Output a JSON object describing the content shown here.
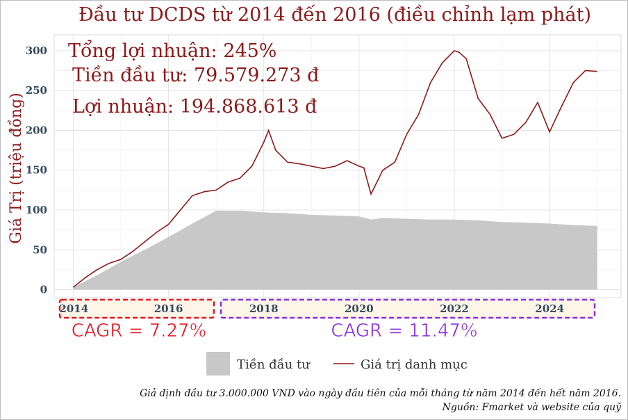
{
  "chart_data": {
    "type": "area",
    "title": "Đầu tư DCDS từ 2014 đến 2016 (điều chỉnh lạm phát)",
    "ylabel": "Giá Trị (triệu đồng)",
    "xlabel": "",
    "ylim": [
      -10,
      320
    ],
    "xlim": [
      2013.6,
      2025.5
    ],
    "yticks": [
      0,
      50,
      100,
      150,
      200,
      250,
      300
    ],
    "xticks": [
      2014,
      2016,
      2018,
      2020,
      2022,
      2024
    ],
    "grid": true,
    "legend_position": "bottom",
    "annotations": {
      "total_return": "Tổng lợi nhuận: 245%",
      "invested": "Tiền đầu tư: 79.579.273 đ",
      "profit": "Lợi nhuận: 194.868.613 đ",
      "cagr_first": "CAGR = 7.27%",
      "cagr_second": "CAGR = 11.47%"
    },
    "caption_line1": "Giả định đầu tư 3.000.000 VND vào ngày đầu tiên của mỗi tháng từ năm 2014 đến hết năm 2016.",
    "caption_line2": "Nguồn: Fmarket và website của quỹ",
    "colors": {
      "title": "#8b1a1a",
      "line": "#8b1a1a",
      "area": "#c8c8c8",
      "cagr_first": "#e8141e",
      "cagr_second": "#8a2be2",
      "tick": "#34495e",
      "box_fill": "#fdf5e8"
    },
    "series": [
      {
        "name": "Tiền đầu tư",
        "kind": "area",
        "x": [
          2014.0,
          2014.5,
          2015.0,
          2015.5,
          2016.0,
          2016.5,
          2017.0,
          2017.5,
          2018.0,
          2018.5,
          2019.0,
          2019.5,
          2020.0,
          2020.25,
          2020.5,
          2021.0,
          2021.5,
          2022.0,
          2022.5,
          2023.0,
          2023.5,
          2024.0,
          2024.5,
          2025.0
        ],
        "values": [
          3,
          18,
          35,
          50,
          66,
          83,
          99,
          99,
          97,
          96,
          94,
          93,
          92,
          88,
          90,
          89,
          88,
          88,
          87,
          85,
          84,
          83,
          81,
          80
        ]
      },
      {
        "name": "Giá trị danh mục",
        "kind": "line",
        "x": [
          2014.0,
          2014.25,
          2014.5,
          2014.75,
          2015.0,
          2015.25,
          2015.5,
          2015.75,
          2016.0,
          2016.25,
          2016.5,
          2016.75,
          2017.0,
          2017.25,
          2017.5,
          2017.75,
          2018.0,
          2018.1,
          2018.25,
          2018.5,
          2018.75,
          2019.0,
          2019.25,
          2019.5,
          2019.75,
          2020.0,
          2020.1,
          2020.25,
          2020.5,
          2020.75,
          2021.0,
          2021.25,
          2021.5,
          2021.75,
          2022.0,
          2022.1,
          2022.25,
          2022.5,
          2022.75,
          2023.0,
          2023.25,
          2023.5,
          2023.75,
          2024.0,
          2024.25,
          2024.5,
          2024.75,
          2025.0
        ],
        "values": [
          3,
          15,
          25,
          33,
          38,
          48,
          60,
          72,
          82,
          100,
          118,
          123,
          125,
          135,
          140,
          155,
          185,
          200,
          175,
          160,
          158,
          155,
          152,
          155,
          162,
          155,
          153,
          120,
          150,
          160,
          195,
          220,
          260,
          285,
          300,
          298,
          290,
          240,
          220,
          190,
          195,
          210,
          235,
          198,
          230,
          260,
          275,
          274
        ]
      }
    ]
  }
}
